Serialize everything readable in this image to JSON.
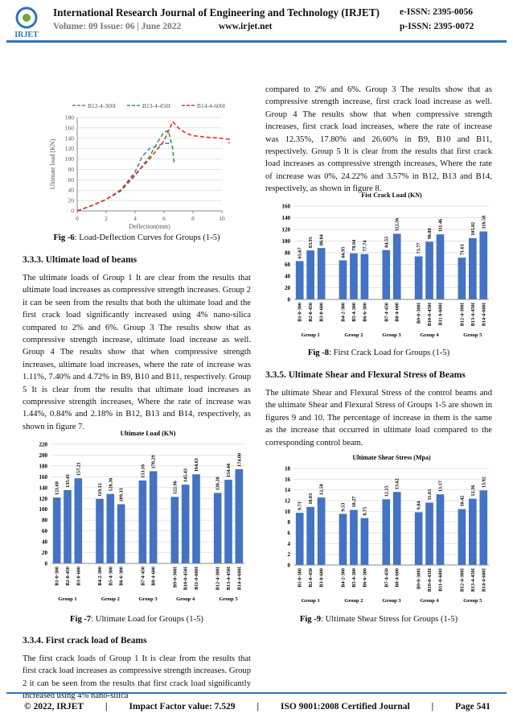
{
  "header": {
    "logo": "IRJET",
    "journal": "International Research Journal of Engineering and Technology (IRJET)",
    "eissn": "e-ISSN: 2395-0056",
    "volume": "Volume: 09 Issue: 06 | June 2022",
    "website": "www.irjet.net",
    "pissn": "p-ISSN: 2395-0072"
  },
  "headings": [
    "3.3.3. Ultimate load of beams",
    "3.3.4. First crack load of Beams",
    "3.3.5. Ultimate Shear and Flexural Stress of Beams"
  ],
  "paragraphs": [
    "The ultimate loads of Group 1 It are clear from the results that ultimate load increases as compressive strength increases. Group 2 it can be seen from the results that both the ultimate load and the first crack load significantly increased using 4% nano-silica compared to 2% and 6%. Group 3 The results show that as compressive strength increase, ultimate load increase as well. Group 4 The results show that when compressive strength increases, ultimate load increases, where the rate of increase was 1.11%, 7.40% and 4.72% in B9, B10 and B11, respectively. Group 5 It is clear from the results that ultimate load increases as compressive strength increases, Where the rate of increase was 1.44%, 0.84% and 2.18% in B12, B13 and B14, respectively, as shown in figure 7.",
    "The first crack loads of Group 1 It is clear from the results that first crack load increases as compressive strength increases. Group 2 it can be seen from the results that first crack load significantly increased using 4% nano-silica",
    "compared to 2% and 6%. Group 3 The results show that as compressive strength increase, first crack load increase as well. Group 4 The results show that when compressive strength increases, first crack load increases, where the rate of increase was 12.35%, 17.80% and 26.60% in B9, B10 and B11, respectively. Group 5 It is clear from the results that first crack load increases as compressive strength increases, Where the rate of increase was 0%, 24.22% and 3.57% in B12, B13 and B14, respectively, as shown in figure 8.",
    "The ultimate Shear and Flexural Stress of the control beams and the ultimate Shear and Flexural Stress of Groups 1-5 are shown in figures 9 and 10. The percentage of increase in them is the same as the increase that occurred in ultimate load compared to the corresponding control beam."
  ],
  "figures": [
    {
      "type": "line",
      "caption_label": "Fig -6",
      "caption_text": ": Load-Deflection Curves for Groups (1-5)",
      "xlabel": "Deflection(mm)",
      "ylabel": "Ultimate load (KN)",
      "xlim": [
        0,
        10
      ],
      "xticks": [
        0,
        2,
        4,
        6,
        8,
        10
      ],
      "ylim": [
        0,
        180
      ],
      "yticks": [
        0,
        20,
        40,
        60,
        80,
        100,
        120,
        140,
        160,
        180
      ],
      "grid": true,
      "series": [
        {
          "name": "B12-4-300I",
          "color": "#4f81bd",
          "x": [
            0,
            1,
            2,
            3,
            4,
            4.5,
            5,
            5.5,
            6,
            6.5
          ],
          "values": [
            0,
            10,
            22,
            40,
            75,
            105,
            120,
            125,
            130,
            130
          ]
        },
        {
          "name": "B13-4-450I",
          "color": "#2e9e4f",
          "x": [
            0,
            1,
            2,
            3,
            4,
            5,
            5.5,
            6,
            6.3,
            6.6,
            6.7
          ],
          "values": [
            0,
            10,
            22,
            38,
            68,
            105,
            130,
            152,
            155,
            120,
            90
          ]
        },
        {
          "name": "B14-4-600I",
          "color": "#e0302a",
          "x": [
            0,
            1,
            2,
            3,
            4,
            5,
            6,
            6.6,
            7,
            7.5,
            8,
            9,
            10,
            10.5,
            10.5
          ],
          "values": [
            0,
            10,
            22,
            40,
            70,
            100,
            135,
            172,
            160,
            150,
            145,
            142,
            140,
            138,
            130
          ]
        }
      ]
    },
    {
      "type": "bar",
      "title": "Ultimate Load (KN)",
      "caption_label": "Fig -7",
      "caption_text": ": Ultimate Load for Groups (1-5)",
      "color": "#4472c4",
      "ylim": [
        0,
        220
      ],
      "yticks": [
        0,
        20,
        40,
        60,
        80,
        100,
        120,
        140,
        160,
        180,
        200,
        220
      ],
      "grid": true,
      "groups": [
        {
          "name": "Group 1",
          "categories": [
            "B1-0-300",
            "B2-0-450",
            "B3-0-600"
          ],
          "values": [
            121.68,
            135.41,
            157.21
          ],
          "value_labels": [
            "121.68",
            "135.41",
            "157.21"
          ]
        },
        {
          "name": "Group 2",
          "categories": [
            "B4-2-300",
            "B5-4-300",
            "B6-6-300"
          ],
          "values": [
            119.12,
            128.36,
            109.33
          ],
          "value_labels": [
            "119.12",
            "128.36",
            "109.33"
          ]
        },
        {
          "name": "Group 3",
          "categories": [
            "B7-4-450",
            "B8-4-600"
          ],
          "values": [
            153.16,
            170.29
          ],
          "value_labels": [
            "153.16",
            "170.29"
          ]
        },
        {
          "name": "Group 4",
          "categories": [
            "B9-0-300I",
            "B10-0-450I",
            "B11-0-600I"
          ],
          "values": [
            122.96,
            145.43,
            164.63
          ],
          "value_labels": [
            "122.96",
            "145.43",
            "164.63"
          ]
        },
        {
          "name": "Group 5",
          "categories": [
            "B12-4-300I",
            "B13-4-450I",
            "B14-4-600I"
          ],
          "values": [
            130.2,
            154.44,
            174
          ],
          "value_labels": [
            "130.20",
            "154.44",
            "174.00"
          ]
        }
      ]
    },
    {
      "type": "bar",
      "title": "Fist Crack Load (KN)",
      "caption_label": "Fig -8",
      "caption_text": ": First Crack Load for Groups (1-5)",
      "color": "#4472c4",
      "ylim": [
        0,
        160
      ],
      "yticks": [
        0,
        20,
        40,
        60,
        80,
        100,
        120,
        140,
        160
      ],
      "grid": true,
      "groups": [
        {
          "name": "Group 1",
          "categories": [
            "B1-0-300",
            "B2-0-450",
            "B3-0-600"
          ],
          "values": [
            65.67,
            83.95,
            88.04
          ],
          "value_labels": [
            "65.67",
            "83.95",
            "88.04"
          ]
        },
        {
          "name": "Group 2",
          "categories": [
            "B4-2-300",
            "B5-4-300",
            "B6-6-300"
          ],
          "values": [
            66.95,
            78.94,
            77.74
          ],
          "value_labels": [
            "66.95",
            "78.94",
            "77.74"
          ]
        },
        {
          "name": "Group 3",
          "categories": [
            "B7-4-450",
            "B8-4-600"
          ],
          "values": [
            84.55,
            112.56
          ],
          "value_labels": [
            "84.55",
            "112.56"
          ]
        },
        {
          "name": "Group 4",
          "categories": [
            "B9-0-300I",
            "B10-0-450I",
            "B11 0-600I"
          ],
          "values": [
            73.77,
            98.89,
            111.46
          ],
          "value_labels": [
            "73.77",
            "98.89",
            "111.46"
          ]
        },
        {
          "name": "Group 5",
          "categories": [
            "B12-4-300I",
            "B13-4-450I",
            "B14-4-600I"
          ],
          "values": [
            71.61,
            105.02,
            116.58
          ],
          "value_labels": [
            "71.61",
            "105.02",
            "116.58"
          ]
        }
      ]
    },
    {
      "type": "bar",
      "title": "Ultimate Shear Stress (Mpa)",
      "caption_label": "Fig -9",
      "caption_text": ": Ultimate Shear Stress for Groups (1-5)",
      "color": "#4472c4",
      "ylim": [
        0,
        18
      ],
      "yticks": [
        0,
        2,
        4,
        6,
        8,
        10,
        12,
        14,
        16,
        18
      ],
      "grid": true,
      "groups": [
        {
          "name": "Group 1",
          "categories": [
            "B1-0-300",
            "B2-0-450",
            "B3-0-600"
          ],
          "values": [
            9.73,
            10.83,
            12.58
          ],
          "value_labels": [
            "9.73",
            "10.83",
            "12.58"
          ]
        },
        {
          "name": "Group 2",
          "categories": [
            "B4-2-300",
            "B5-4-300",
            "B6-6-300"
          ],
          "values": [
            9.53,
            10.27,
            8.75
          ],
          "value_labels": [
            "9.53",
            "10.27",
            "8.75"
          ]
        },
        {
          "name": "Group 3",
          "categories": [
            "B7-4-450",
            "B8-4-600"
          ],
          "values": [
            12.25,
            13.62
          ],
          "value_labels": [
            "12.25",
            "13.62"
          ]
        },
        {
          "name": "Group 4",
          "categories": [
            "B9-0-300I",
            "B10-0-450I",
            "B11-0-600I"
          ],
          "values": [
            9.84,
            11.63,
            13.17
          ],
          "value_labels": [
            "9.84",
            "11.63",
            "13.17"
          ]
        },
        {
          "name": "Group 5",
          "categories": [
            "B12-4-300I",
            "B13-4-450I",
            "B14-4-600I"
          ],
          "values": [
            10.42,
            12.36,
            13.92
          ],
          "value_labels": [
            "10.42",
            "12.36",
            "13.92"
          ]
        }
      ]
    }
  ],
  "footer": {
    "copyright": "© 2022, IRJET",
    "separator": "|",
    "impact": "Impact Factor value: 7.529",
    "iso": "ISO 9001:2008 Certified Journal",
    "page": "Page 541"
  }
}
